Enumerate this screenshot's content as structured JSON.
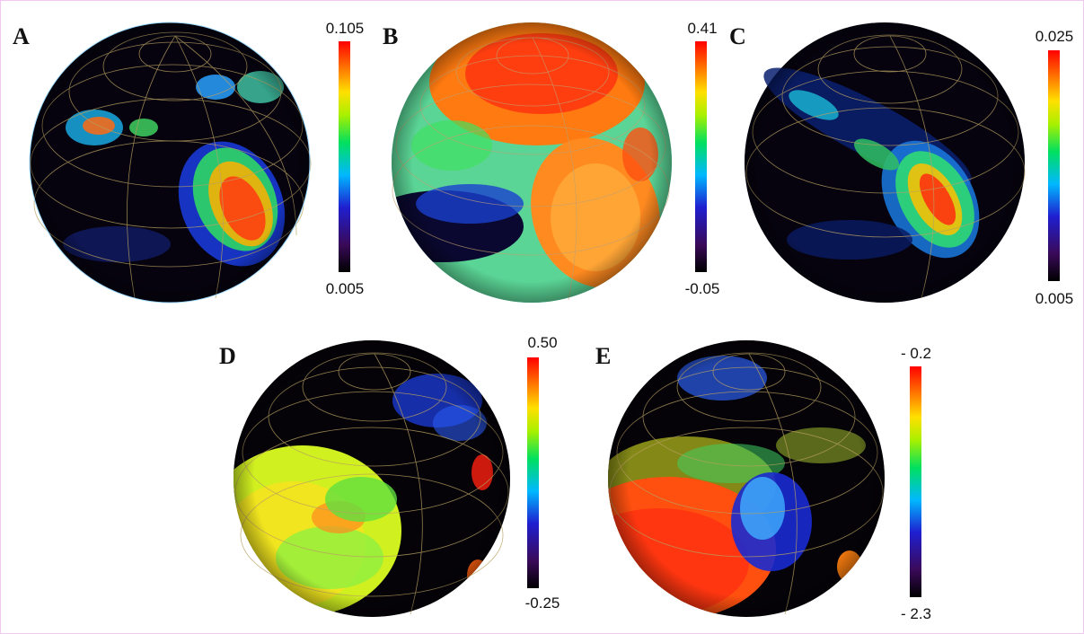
{
  "panels": [
    {
      "letter": "A",
      "cbar_max": "0.105",
      "cbar_min": "0.005"
    },
    {
      "letter": "B",
      "cbar_max": "0.41",
      "cbar_min": "-0.05"
    },
    {
      "letter": "C",
      "cbar_max": "0.025",
      "cbar_min": "0.005"
    },
    {
      "letter": "D",
      "cbar_max": "0.50",
      "cbar_min": "-0.25"
    },
    {
      "letter": "E",
      "cbar_max": "- 0.2",
      "cbar_min": "- 2.3"
    }
  ],
  "colormap": [
    "#000000",
    "#3a0a5a",
    "#1f1fd0",
    "#00b8ff",
    "#00e060",
    "#a8f000",
    "#ffe000",
    "#ff7000",
    "#ff0000"
  ]
}
